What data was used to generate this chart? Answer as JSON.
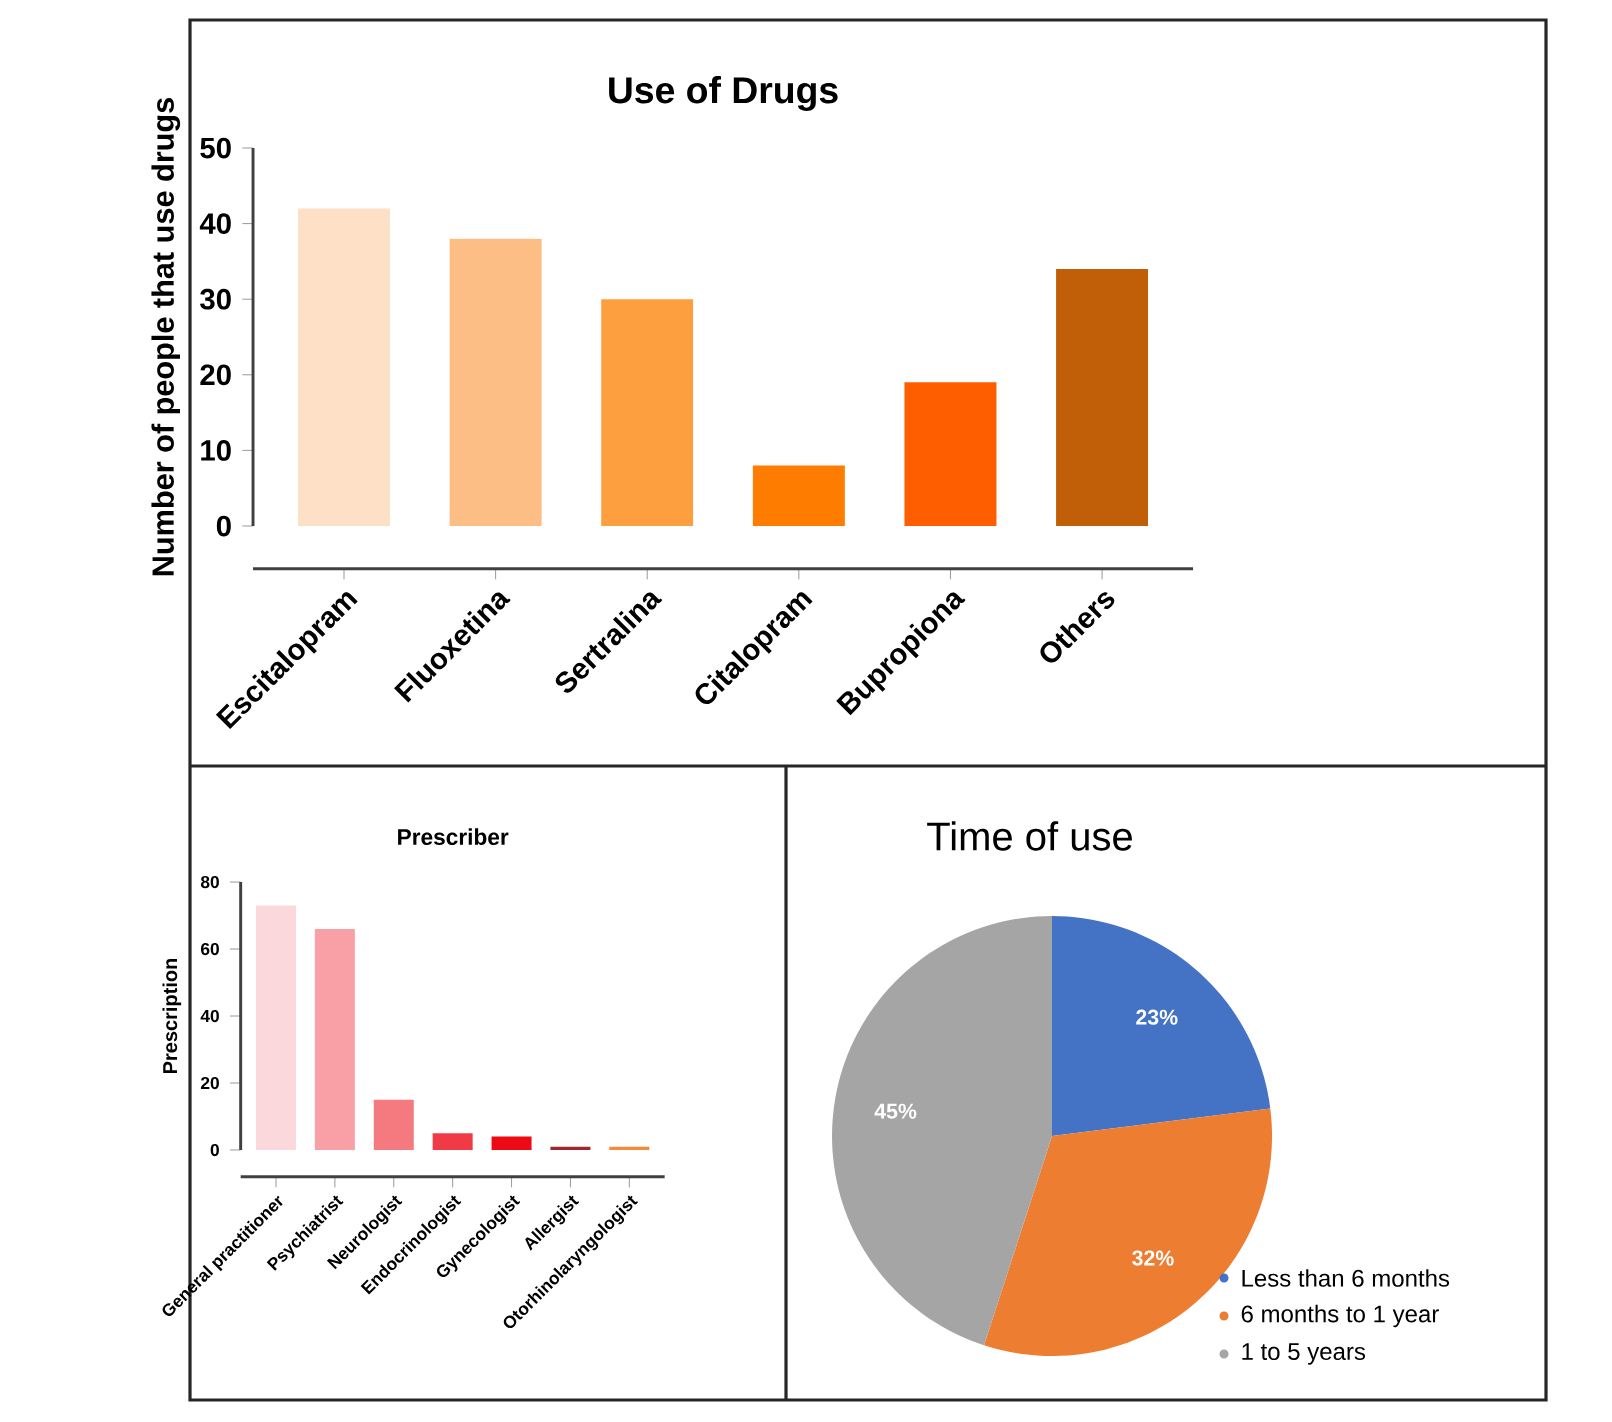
{
  "chart_data": [
    {
      "type": "bar",
      "title": "Use of Drugs",
      "ylabel": "Number of people that use drugs",
      "categories": [
        "Escitalopram",
        "Fluoxetina",
        "Sertralina",
        "Citalopram",
        "Bupropiona",
        "Others"
      ],
      "values": [
        42,
        38,
        30,
        8,
        19,
        34
      ],
      "colors": [
        "#fde0c5",
        "#fdbe85",
        "#fd9f3f",
        "#fe7c00",
        "#ff5e00",
        "#c15e08"
      ],
      "ylim": [
        0,
        50
      ],
      "yticks": [
        0,
        10,
        20,
        30,
        40,
        50
      ],
      "grid": false
    },
    {
      "type": "bar",
      "title": "Prescriber",
      "ylabel": "Prescription",
      "categories": [
        "General practitioner",
        "Psychiatrist",
        "Neurologist",
        "Endocrinologist",
        "Gynecologist",
        "Allergist",
        "Otorhinolaryngologist"
      ],
      "values": [
        73,
        66,
        15,
        5,
        4,
        1,
        1
      ],
      "colors": [
        "#fbd8dc",
        "#f8a0a6",
        "#f57a80",
        "#f03b47",
        "#ee0a14",
        "#a0282d",
        "#f58a3a"
      ],
      "ylim": [
        0,
        80
      ],
      "yticks": [
        0,
        20,
        40,
        60,
        80
      ],
      "grid": false
    },
    {
      "type": "pie",
      "title": "Time of use",
      "categories": [
        "Less than 6 months",
        "6 months to 1 year",
        "1 to 5 years"
      ],
      "values": [
        23,
        32,
        45
      ],
      "value_labels": [
        "23%",
        "32%",
        "45%"
      ],
      "colors": [
        "#4472c4",
        "#ed7d31",
        "#a5a5a5"
      ],
      "legend": "bottom right"
    }
  ]
}
